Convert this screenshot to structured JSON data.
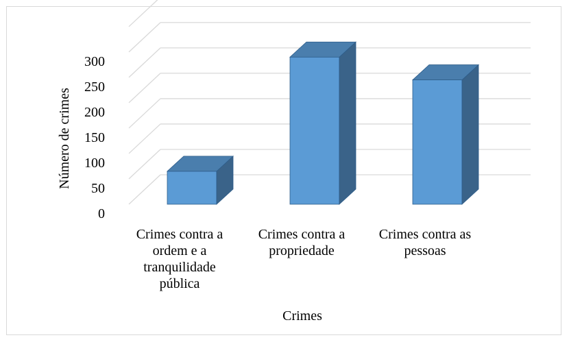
{
  "chart_data": {
    "type": "bar",
    "title": "",
    "xlabel": "Crimes",
    "ylabel": "Número de crimes",
    "categories": [
      [
        "Crimes contra a",
        "ordem e a",
        "tranquilidade",
        "pública"
      ],
      [
        "Crimes contra a",
        "propriedade"
      ],
      [
        "Crimes contra as",
        "pessoas"
      ]
    ],
    "series": [
      {
        "values": [
          65,
          290,
          245
        ]
      }
    ],
    "ylim": [
      0,
      350
    ],
    "yticks": [
      0,
      50,
      100,
      150,
      200,
      250,
      300
    ],
    "grid": true,
    "legend": "none",
    "three_d": true,
    "colors": {
      "bar_front": "#5b9bd5",
      "bar_side": "#3a6389",
      "bar_top": "#4a7ead",
      "bar_edge": "#2e5d8a",
      "grid": "#d9d9d9"
    }
  }
}
